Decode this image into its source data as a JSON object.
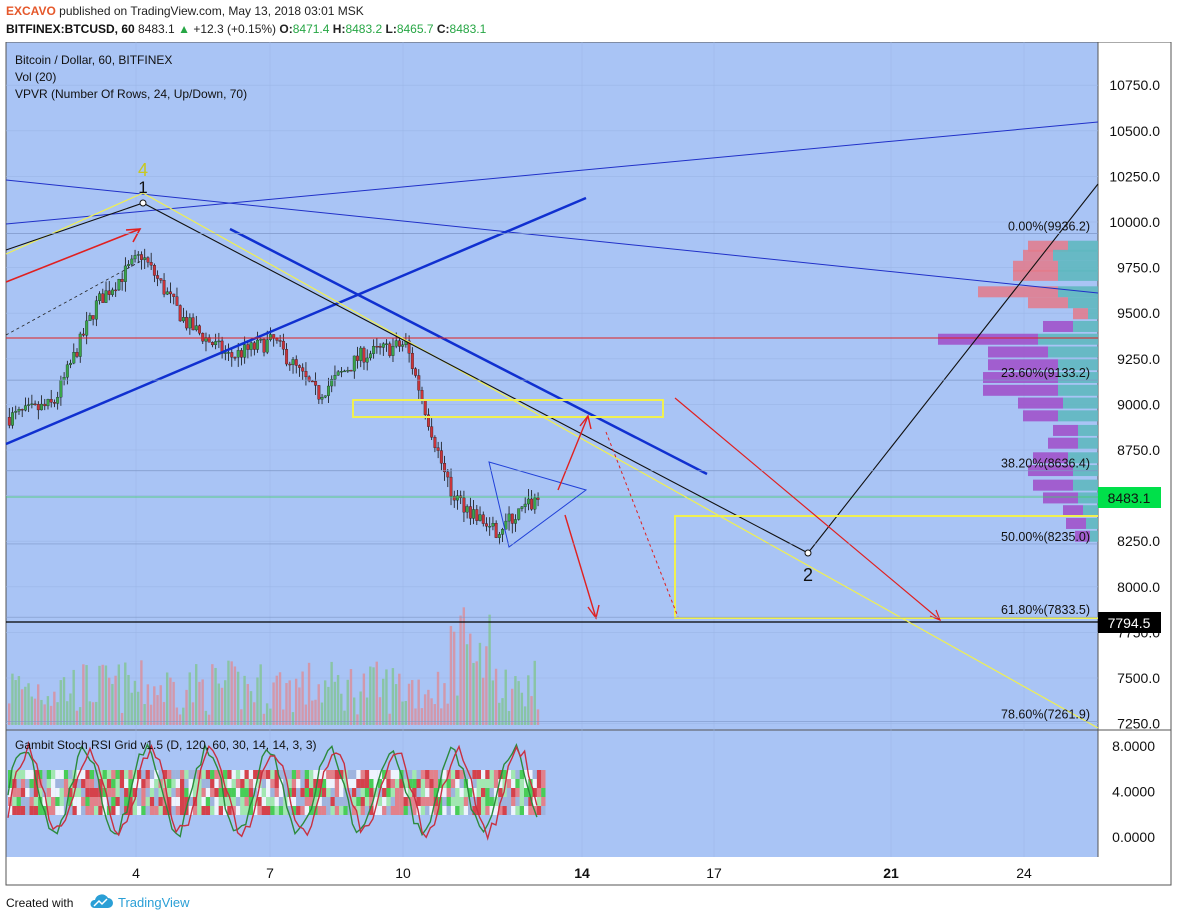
{
  "header": {
    "author": "EXCAVO",
    "published": "published on TradingView.com, May 13, 2018 03:01 MSK",
    "symbol": "BITFINEX:BTCUSD, 60",
    "last": "8483.1",
    "change": "+12.3 (+0.15%)",
    "open_label": "O:",
    "open": "8471.4",
    "high_label": "H:",
    "high": "8483.2",
    "low_label": "L:",
    "low": "8465.7",
    "close_label": "C:",
    "close": "8483.1"
  },
  "legend": {
    "title": "Bitcoin / Dollar, 60, BITFINEX",
    "vol": "Vol (20)",
    "vpvr": "VPVR (Number Of Rows, 24, Up/Down, 70)",
    "oscillator": "Gambit Stoch RSI Grid v1.5 (D, 120, 60, 30, 14, 14, 3, 3)"
  },
  "colors": {
    "background": "#a9c4f5",
    "up_candle": "#3aa54b",
    "down_candle": "#c8343a",
    "accent_yellow": "#f0f050",
    "trend_blue": "#1030d0",
    "red_arrow": "#e02020",
    "price_label_bg": "#00e04a"
  },
  "chart_data": {
    "type": "line",
    "title": "Bitcoin / Dollar, 60, BITFINEX",
    "xlabel": "",
    "ylabel": "",
    "x_ticks": [
      "4",
      "7",
      "10",
      "14",
      "17",
      "21",
      "24"
    ],
    "y_ticks": [
      "10750.0",
      "10500.0",
      "10250.0",
      "10000.0",
      "9750.0",
      "9500.0",
      "9250.0",
      "9000.0",
      "8750.0",
      "8500.0",
      "8250.0",
      "8000.0",
      "7750.0",
      "7500.0",
      "7250.0"
    ],
    "ylim": [
      7200,
      10950
    ],
    "last_price": "8483.1",
    "marked_price": "7794.5",
    "series": [
      {
        "x": [
          1,
          2,
          3,
          4,
          5,
          6,
          7,
          8,
          9,
          10,
          11,
          12,
          13
        ],
        "values": [
          8930,
          9000,
          9560,
          9820,
          9450,
          9260,
          9350,
          9050,
          9270,
          9330,
          8520,
          8300,
          8483
        ]
      }
    ],
    "fib_levels": [
      {
        "label": "0.00%(9936.2)",
        "value": 9936.2
      },
      {
        "label": "23.60%(9133.2)",
        "value": 9133.2
      },
      {
        "label": "38.20%(8636.4)",
        "value": 8636.4
      },
      {
        "label": "50.00%(8235.0)",
        "value": 8235.0
      },
      {
        "label": "61.80%(7833.5)",
        "value": 7833.5
      },
      {
        "label": "78.60%(7261.9)",
        "value": 7261.9
      }
    ],
    "wave_labels": [
      "4",
      "1",
      "2"
    ],
    "oscillator_ticks": [
      "8.0000",
      "4.0000",
      "0.0000"
    ]
  },
  "footer": {
    "created_with": "Created with",
    "brand": "TradingView"
  }
}
